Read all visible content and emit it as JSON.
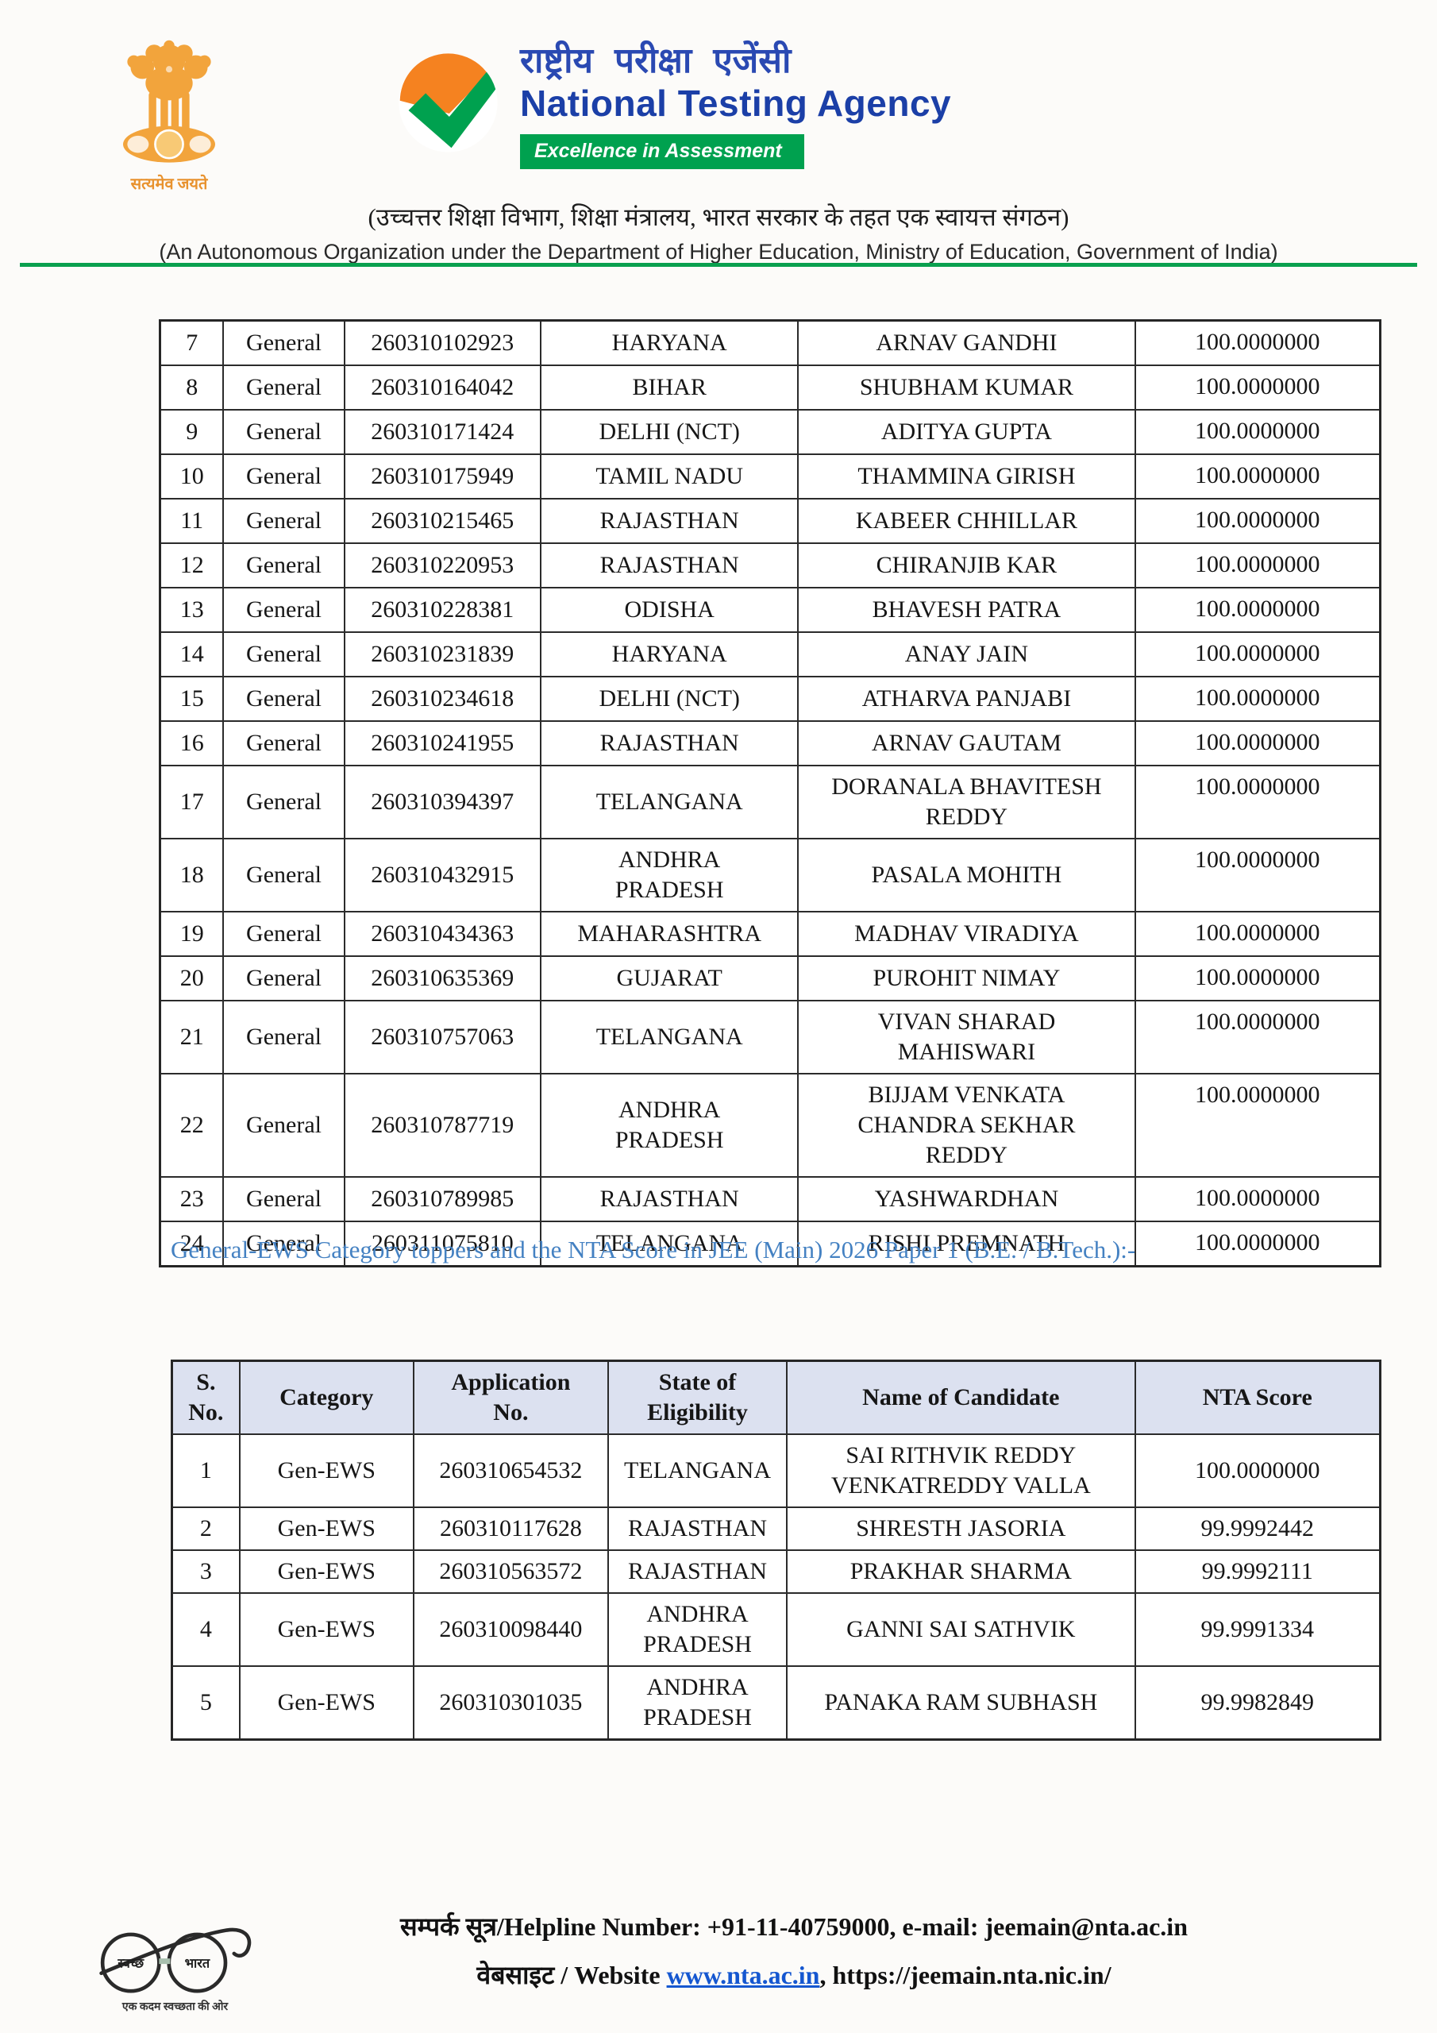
{
  "header": {
    "emblem_caption": "सत्यमेव जयते",
    "logo": {
      "name_hindi": "राष्ट्रीय परीक्षा एजेंसी",
      "name_english": "National Testing Agency",
      "tagline": "Excellence in Assessment"
    },
    "subtitle_hindi": "(उच्चत्तर शिक्षा विभाग, शिक्षा मंत्रालय, भारत सरकार के तहत एक स्वायत्त संगठन)",
    "subtitle_english": "(An Autonomous Organization under the Department of Higher Education, Ministry of Education, Government of India)"
  },
  "general_table": {
    "rows": [
      [
        "7",
        "General",
        "260310102923",
        "HARYANA",
        "ARNAV GANDHI",
        "100.0000000"
      ],
      [
        "8",
        "General",
        "260310164042",
        "BIHAR",
        "SHUBHAM KUMAR",
        "100.0000000"
      ],
      [
        "9",
        "General",
        "260310171424",
        "DELHI (NCT)",
        "ADITYA GUPTA",
        "100.0000000"
      ],
      [
        "10",
        "General",
        "260310175949",
        "TAMIL NADU",
        "THAMMINA GIRISH",
        "100.0000000"
      ],
      [
        "11",
        "General",
        "260310215465",
        "RAJASTHAN",
        "KABEER CHHILLAR",
        "100.0000000"
      ],
      [
        "12",
        "General",
        "260310220953",
        "RAJASTHAN",
        "CHIRANJIB KAR",
        "100.0000000"
      ],
      [
        "13",
        "General",
        "260310228381",
        "ODISHA",
        "BHAVESH PATRA",
        "100.0000000"
      ],
      [
        "14",
        "General",
        "260310231839",
        "HARYANA",
        "ANAY JAIN",
        "100.0000000"
      ],
      [
        "15",
        "General",
        "260310234618",
        "DELHI (NCT)",
        "ATHARVA PANJABI",
        "100.0000000"
      ],
      [
        "16",
        "General",
        "260310241955",
        "RAJASTHAN",
        "ARNAV GAUTAM",
        "100.0000000"
      ],
      [
        "17",
        "General",
        "260310394397",
        "TELANGANA",
        "DORANALA BHAVITESH\nREDDY",
        "100.0000000"
      ],
      [
        "18",
        "General",
        "260310432915",
        "ANDHRA\nPRADESH",
        "PASALA MOHITH",
        "100.0000000"
      ],
      [
        "19",
        "General",
        "260310434363",
        "MAHARASHTRA",
        "MADHAV VIRADIYA",
        "100.0000000"
      ],
      [
        "20",
        "General",
        "260310635369",
        "GUJARAT",
        "PUROHIT NIMAY",
        "100.0000000"
      ],
      [
        "21",
        "General",
        "260310757063",
        "TELANGANA",
        "VIVAN SHARAD\nMAHISWARI",
        "100.0000000"
      ],
      [
        "22",
        "General",
        "260310787719",
        "ANDHRA\nPRADESH",
        "BIJJAM VENKATA\nCHANDRA SEKHAR\nREDDY",
        "100.0000000"
      ],
      [
        "23",
        "General",
        "260310789985",
        "RAJASTHAN",
        "YASHWARDHAN",
        "100.0000000"
      ],
      [
        "24",
        "General",
        "260311075810",
        "TELANGANA",
        "RISHI PREMNATH",
        "100.0000000"
      ]
    ]
  },
  "ews_section": {
    "heading": "General-EWS Category toppers and the NTA Score in JEE (Main) 2026 Paper 1 (B.E. / B.Tech.):-",
    "headers": [
      "S.\nNo.",
      "Category",
      "Application\nNo.",
      "State of\nEligibility",
      "Name of Candidate",
      "NTA Score"
    ],
    "rows": [
      [
        "1",
        "Gen-EWS",
        "260310654532",
        "TELANGANA",
        "SAI RITHVIK REDDY\nVENKATREDDY VALLA",
        "100.0000000"
      ],
      [
        "2",
        "Gen-EWS",
        "260310117628",
        "RAJASTHAN",
        "SHRESTH JASORIA",
        "99.9992442"
      ],
      [
        "3",
        "Gen-EWS",
        "260310563572",
        "RAJASTHAN",
        "PRAKHAR SHARMA",
        "99.9992111"
      ],
      [
        "4",
        "Gen-EWS",
        "260310098440",
        "ANDHRA\nPRADESH",
        "GANNI SAI SATHVIK",
        "99.9991334"
      ],
      [
        "5",
        "Gen-EWS",
        "260310301035",
        "ANDHRA\nPRADESH",
        "PANAKA RAM SUBHASH",
        "99.9982849"
      ]
    ]
  },
  "footer": {
    "swachh_lens_left": "स्वच्छ",
    "swachh_lens_right": "भारत",
    "swachh_caption": "एक कदम स्वच्छता की ओर",
    "helpline_line": "सम्पर्क सूत्र/Helpline Number: +91-11-40759000, e-mail: jeemain@nta.ac.in",
    "website_prefix": "वेबसाइट / Website ",
    "website_link": "www.nta.ac.in",
    "website_suffix": ", https://jeemain.nta.nic.in/"
  },
  "colors": {
    "brand_blue": "#1b3fa7",
    "brand_green": "#00a14f",
    "brand_orange": "#f58220",
    "emblem_orange": "#f2a43c",
    "heading_blue": "#4481c2",
    "table_header_bg": "#dce1f0",
    "divider_green": "#0aa04f",
    "link_blue": "#1557d0"
  }
}
